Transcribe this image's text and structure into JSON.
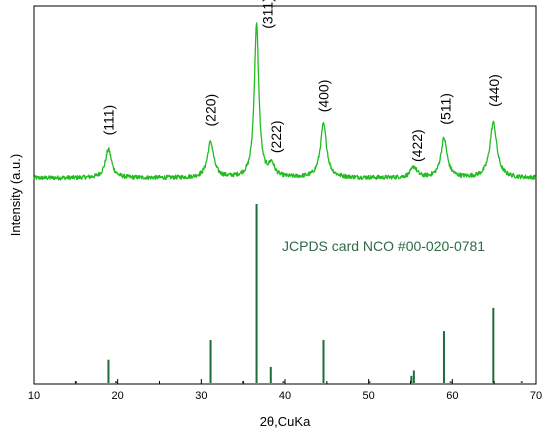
{
  "chart_data": {
    "type": "line",
    "xlabel": "2θ,CuKa",
    "ylabel": "Intensity (a.u.)",
    "xlim": [
      10,
      70
    ],
    "x_ticks": [
      10,
      20,
      30,
      40,
      50,
      60,
      70
    ],
    "y_ticks_shown": false,
    "grid": false,
    "colors": {
      "pattern": "#22bb22",
      "reference": "#1f6b3a",
      "axes": "#000000"
    },
    "pattern": {
      "baseline": 0.06,
      "noise": 0.012,
      "peaks": [
        {
          "two_theta": 18.9,
          "height": 0.16,
          "width": 0.45
        },
        {
          "two_theta": 31.1,
          "height": 0.2,
          "width": 0.45
        },
        {
          "two_theta": 36.6,
          "height": 0.86,
          "width": 0.33
        },
        {
          "two_theta": 38.4,
          "height": 0.07,
          "width": 0.4
        },
        {
          "two_theta": 44.6,
          "height": 0.3,
          "width": 0.45
        },
        {
          "two_theta": 55.4,
          "height": 0.06,
          "width": 0.45
        },
        {
          "two_theta": 59.0,
          "height": 0.22,
          "width": 0.45
        },
        {
          "two_theta": 64.9,
          "height": 0.31,
          "width": 0.5
        }
      ]
    },
    "peak_labels": [
      {
        "text": "(111)",
        "two_theta": 18.9,
        "level": 0.3
      },
      {
        "text": "(220)",
        "two_theta": 31.1,
        "level": 0.35
      },
      {
        "text": "(311)",
        "two_theta": 37.9,
        "level": 0.9
      },
      {
        "text": "(222)",
        "two_theta": 38.9,
        "level": 0.2
      },
      {
        "text": "(400)",
        "two_theta": 44.6,
        "level": 0.43
      },
      {
        "text": "(422)",
        "two_theta": 55.8,
        "level": 0.15
      },
      {
        "text": "(511)",
        "two_theta": 59.2,
        "level": 0.36
      },
      {
        "text": "(440)",
        "two_theta": 65.0,
        "level": 0.46
      }
    ],
    "reference": {
      "label": "JCPDS card NCO #00-020-0781",
      "lines": [
        {
          "two_theta": 15.0,
          "intensity": 0.01
        },
        {
          "two_theta": 18.9,
          "intensity": 0.13
        },
        {
          "two_theta": 19.8,
          "intensity": 0.01
        },
        {
          "two_theta": 31.1,
          "intensity": 0.24
        },
        {
          "two_theta": 35.0,
          "intensity": 0.01
        },
        {
          "two_theta": 36.6,
          "intensity": 1.0
        },
        {
          "two_theta": 38.3,
          "intensity": 0.09
        },
        {
          "two_theta": 39.8,
          "intensity": 0.01
        },
        {
          "two_theta": 44.6,
          "intensity": 0.24
        },
        {
          "two_theta": 50.1,
          "intensity": 0.01
        },
        {
          "two_theta": 55.1,
          "intensity": 0.04
        },
        {
          "two_theta": 55.4,
          "intensity": 0.07
        },
        {
          "two_theta": 59.0,
          "intensity": 0.29
        },
        {
          "two_theta": 59.8,
          "intensity": 0.01
        },
        {
          "two_theta": 64.9,
          "intensity": 0.42
        },
        {
          "two_theta": 68.3,
          "intensity": 0.01
        }
      ]
    }
  }
}
